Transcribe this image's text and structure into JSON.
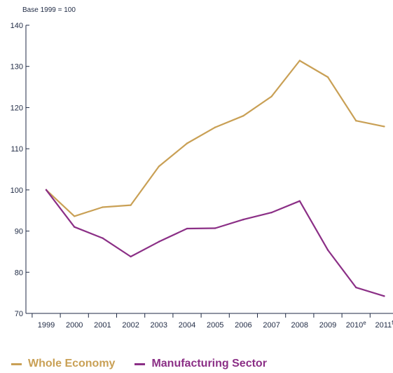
{
  "chart_data": {
    "type": "line",
    "note": "Base 1999 = 100",
    "x": [
      "1999",
      "2000",
      "2001",
      "2002",
      "2003",
      "2004",
      "2005",
      "2006",
      "2007",
      "2008",
      "2009",
      "2010",
      "2011"
    ],
    "x_superscripts": [
      "",
      "",
      "",
      "",
      "",
      "",
      "",
      "",
      "",
      "",
      "",
      "e",
      "f"
    ],
    "ylim": [
      70,
      140
    ],
    "yticks": [
      70,
      80,
      90,
      100,
      110,
      120,
      130,
      140
    ],
    "grid": false,
    "legend_position": "bottom-left",
    "series": [
      {
        "name": "Whole Economy",
        "color": "#c9a055",
        "values": [
          100,
          93.6,
          95.8,
          96.3,
          105.7,
          111.3,
          115.2,
          118.0,
          122.7,
          131.4,
          127.4,
          116.8,
          115.4
        ]
      },
      {
        "name": "Manufacturing Sector",
        "color": "#8b2f86",
        "values": [
          100,
          91.0,
          88.3,
          83.8,
          87.4,
          90.6,
          90.7,
          92.8,
          94.5,
          97.3,
          85.4,
          76.3,
          74.2
        ]
      }
    ]
  }
}
